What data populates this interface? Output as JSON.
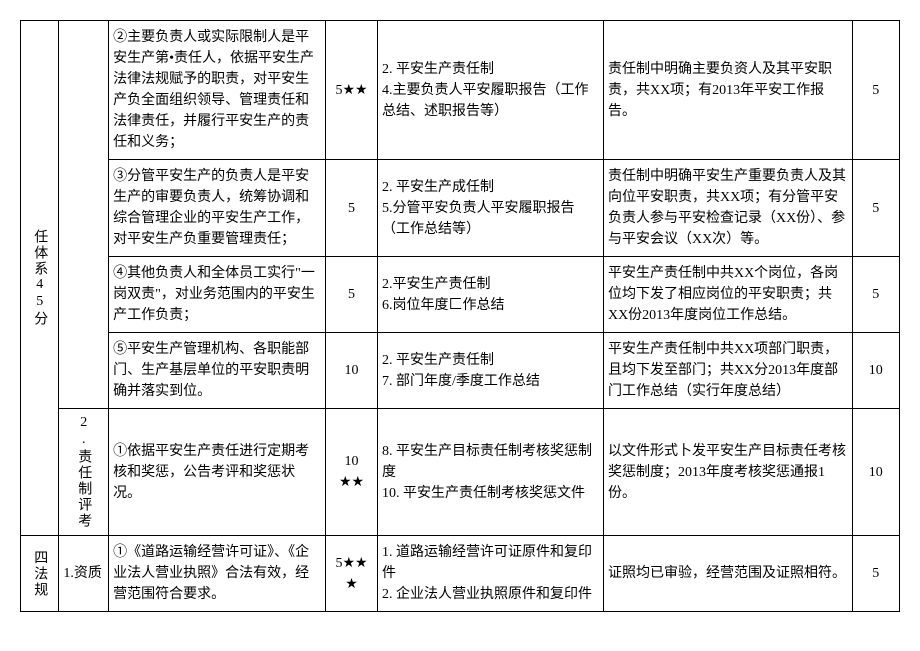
{
  "rows": [
    {
      "cat": "任体系45分",
      "sub": "",
      "c3": "②主要负责人或实际限制人是平安生产第•责任人，依据平安生产法律法规赋予的职责，对平安生产负全面组织领导、管理责任和法律责任，并履行平安生产的责任和义务；",
      "c4": "5★★",
      "c5": "2. 平安生产责任制\n4.主要负责人平安履职报告（工作总结、述职报告等）",
      "c6": "责任制中明确主要负资人及其平安职责，共XX项；有2013年平安工作报告。",
      "c7": "5"
    },
    {
      "c3": "③分管平安生产的负责人是平安生产的审要负责人，统筹协调和综合管理企业的平安生产工作，对平安生产负重要管理责任；",
      "c4": "5",
      "c5": "2. 平安生产成任制\n5.分管平安负责人平安履职报告（工作总结等）",
      "c6": "责任制中明确平安生产重要负责人及其向位平安职责，共XX项；有分管平安负责人参与平安检查记录（XX份）、参与平安会议（XX次）等。",
      "c7": "5"
    },
    {
      "c3": "④其他负责人和全体员工实行\"一岗双责\"，对业务范围内的平安生产工作负责；",
      "c4": "5",
      "c5": "2.平安生产责任制\n6.岗位年度匚作总结",
      "c6": "平安生产责任制中共XX个岗位，各岗位均下发了相应岗位的平安职责；共XX份2013年度岗位工作总结。",
      "c7": "5"
    },
    {
      "c3": "⑤平安生产管理机构、各职能部门、生产基层单位的平安职责明确并落实到位。",
      "c4": "10",
      "c5": "2. 平安生产责任制\n7. 部门年度/季度工作总结",
      "c6": "平安生产责任制中共XX项部门职责，且均下发至部门；共XX分2013年度部门工作总结（实行年度总结）",
      "c7": "10"
    },
    {
      "sub": "2.责任制评考",
      "c3": "①依据平安生产责任进行定期考核和奖惩，公告考评和奖惩状况。",
      "c4": "10\n★★",
      "c5": "8. 平安生产目标责任制考核奖惩制度\n10. 平安生产责任制考核奖惩文件",
      "c6": "以文件形式卜发平安生产目标责任考核奖惩制度；2013年度考核奖惩通报1份。",
      "c7": "10"
    },
    {
      "cat": "四法规",
      "sub": "1.资质",
      "c3": "①《道路运输经营许可证》、《企业法人营业执照》合法有效，经营范围符合要求。",
      "c4": "5★★★",
      "c5": "1. 道路运输经营许可证原件和复印件\n2. 企业法人营业执照原件和复印件",
      "c6": "证照均已审验，经营范围及证照相符。",
      "c7": "5"
    }
  ]
}
